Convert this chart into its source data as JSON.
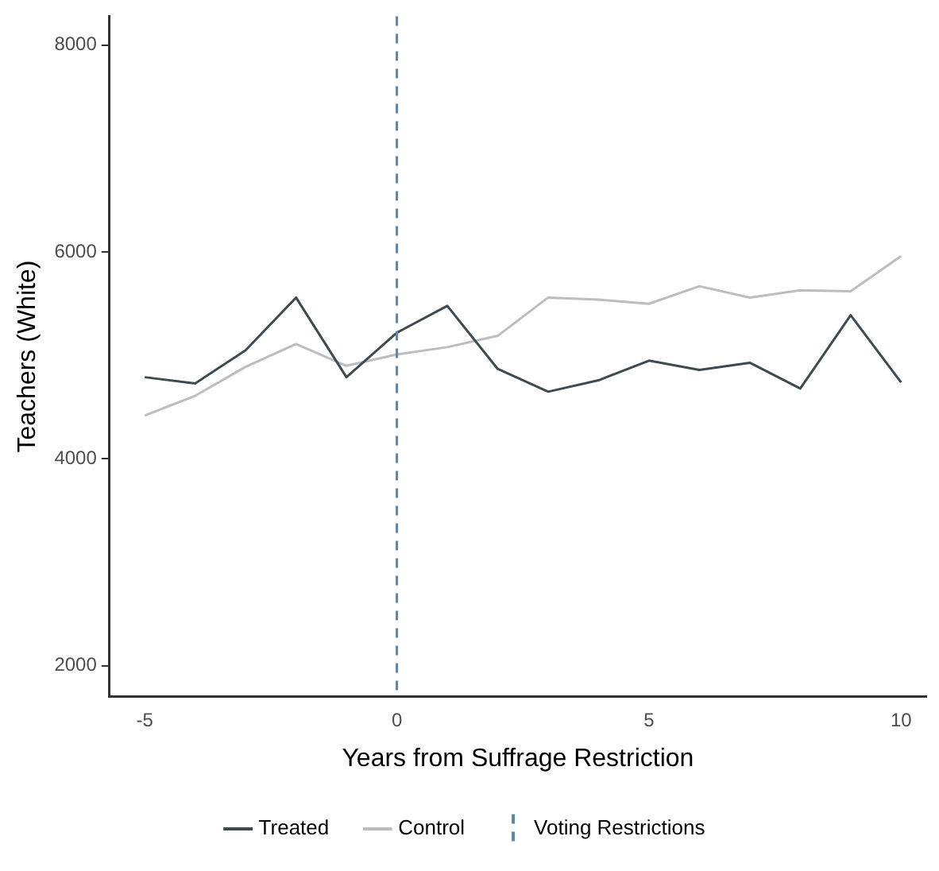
{
  "chart_data": {
    "type": "line",
    "xlabel": "Years from Suffrage Restriction",
    "ylabel": "Teachers (White)",
    "x": [
      -5,
      -4,
      -3,
      -2,
      -1,
      0,
      1,
      2,
      3,
      4,
      5,
      6,
      7,
      8,
      9,
      10
    ],
    "series": [
      {
        "name": "Treated",
        "color": "#3d4a4f",
        "values": [
          4790,
          4730,
          5050,
          5560,
          4790,
          5220,
          5480,
          4870,
          4650,
          4760,
          4950,
          4860,
          4930,
          4680,
          5390,
          4740
        ]
      },
      {
        "name": "Control",
        "color": "#bdbdbd",
        "values": [
          4420,
          4610,
          4890,
          5110,
          4900,
          5010,
          5080,
          5190,
          5560,
          5540,
          5500,
          5670,
          5560,
          5630,
          5620,
          5960
        ]
      }
    ],
    "xlim": [
      -5.7,
      10.5
    ],
    "ylim": [
      1700,
      8280
    ],
    "xticks": [
      -5,
      0,
      5,
      10
    ],
    "yticks": [
      2000,
      4000,
      6000,
      8000
    ],
    "ref_lines": [
      {
        "axis": "x",
        "value": 0,
        "label": "Voting Restrictions",
        "color": "#5b88a0",
        "line_style": "dashed"
      }
    ],
    "grid": false,
    "legend": "bottom",
    "marker": "none",
    "line_style": "solid"
  }
}
